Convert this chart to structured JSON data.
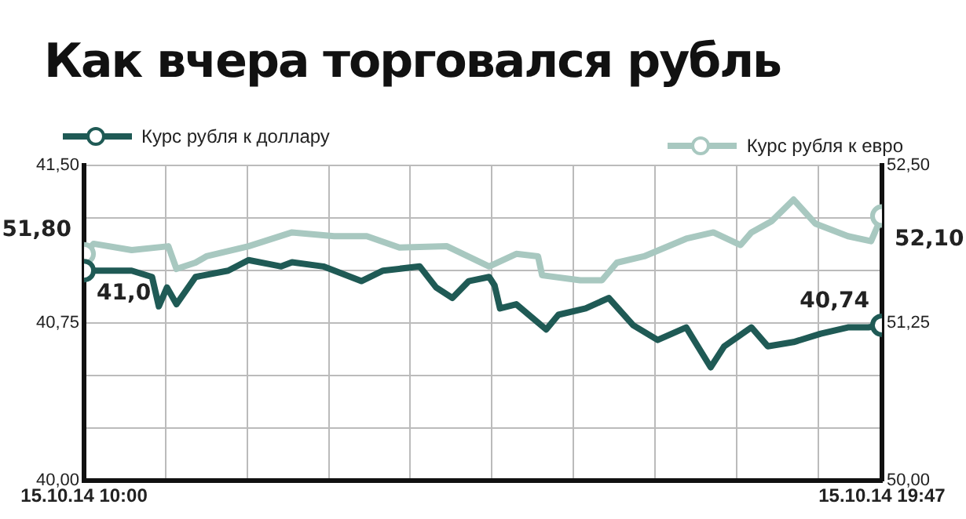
{
  "chart_data": {
    "type": "line",
    "title": "Как вчера торговался рубль",
    "xlim": [
      "--10-15T10:00",
      "--10-15T19:47"
    ],
    "xticks": [
      {
        "value": "--10-15T10:00",
        "label": "15.10.14 10:00"
      },
      {
        "value": "--10-15T11:00",
        "label": null
      },
      {
        "value": "--10-15T12:00",
        "label": null
      },
      {
        "value": "--10-15T13:00",
        "label": null
      },
      {
        "value": "--10-15T14:00",
        "label": null
      },
      {
        "value": "--10-15T15:00",
        "label": null
      },
      {
        "value": "--10-15T16:00",
        "label": null
      },
      {
        "value": "--10-15T17:00",
        "label": null
      },
      {
        "value": "--10-15T18:00",
        "label": null
      },
      {
        "value": "--10-15T19:00",
        "label": null
      },
      {
        "value": "--10-15T19:47",
        "label": "15.10.14 19:47"
      }
    ],
    "ylim": [
      40,
      41.5
    ],
    "yticks": [
      {
        "value": 40,
        "label": "40,00"
      },
      {
        "value": 40.25,
        "label": null
      },
      {
        "value": 40.5,
        "label": null
      },
      {
        "value": 40.75,
        "label": "40,75"
      },
      {
        "value": 41,
        "label": null
      },
      {
        "value": 41.25,
        "label": null
      },
      {
        "value": 41.5,
        "label": "41,50"
      }
    ],
    "y2lim": [
      50,
      52.5
    ],
    "y2ticks": [
      {
        "value": 50,
        "label": "50,00"
      },
      {
        "value": 51.25,
        "label": "51,25"
      },
      {
        "value": 52.5,
        "label": "52,50"
      }
    ],
    "grid": true,
    "legend": "top",
    "line_style": "solid",
    "series": [
      {
        "name": "Курс рубля к доллару",
        "color": "#1f5a55",
        "axis": "y",
        "x": [
          "--10-15T10:00",
          "--10-15T10:05",
          "--10-15T10:35",
          "--10-15T10:50",
          "--10-15T10:55",
          "--10-15T11:01",
          "--10-15T11:08",
          "--10-15T11:22",
          "--10-15T11:46",
          "--10-15T12:01",
          "--10-15T12:17",
          "--10-15T12:25",
          "--10-15T12:33",
          "--10-15T12:56",
          "--10-15T13:24",
          "--10-15T13:40",
          "--10-15T14:07",
          "--10-15T14:19",
          "--10-15T14:31",
          "--10-15T14:43",
          "--10-15T14:58",
          "--10-15T15:02",
          "--10-15T15:06",
          "--10-15T15:18",
          "--10-15T15:40",
          "--10-15T15:49",
          "--10-15T16:09",
          "--10-15T16:26",
          "--10-15T16:44",
          "--10-15T17:02",
          "--10-15T17:23",
          "--10-15T17:41",
          "--10-15T17:51",
          "--10-15T18:11",
          "--10-15T18:23",
          "--10-15T18:42",
          "--10-15T19:02",
          "--10-15T19:22",
          "--10-15T19:37",
          "--10-15T19:47"
        ],
        "values": [
          41.0,
          41.0,
          41.0,
          40.97,
          40.83,
          40.92,
          40.84,
          40.97,
          41.0,
          41.05,
          41.03,
          41.02,
          41.04,
          41.02,
          40.95,
          41.0,
          41.02,
          40.92,
          40.87,
          40.95,
          40.97,
          40.93,
          40.82,
          40.84,
          40.72,
          40.79,
          40.82,
          40.87,
          40.74,
          40.67,
          40.73,
          40.54,
          40.64,
          40.73,
          40.64,
          40.66,
          40.7,
          40.73,
          40.73,
          40.74
        ],
        "value_labels": [
          "41,0",
          null,
          null,
          null,
          null,
          null,
          null,
          null,
          null,
          null,
          null,
          null,
          null,
          null,
          null,
          null,
          null,
          null,
          null,
          null,
          null,
          null,
          null,
          null,
          null,
          null,
          null,
          null,
          null,
          null,
          null,
          null,
          null,
          null,
          null,
          null,
          null,
          null,
          null,
          "40,74"
        ]
      },
      {
        "name": "Курс рубля к евро",
        "color": "#a8c8c0",
        "axis": "y2",
        "x": [
          "--10-15T10:00",
          "--10-15T10:07",
          "--10-15T10:35",
          "--10-15T11:02",
          "--10-15T11:08",
          "--10-15T11:22",
          "--10-15T11:30",
          "--10-15T12:01",
          "--10-15T12:33",
          "--10-15T13:04",
          "--10-15T13:28",
          "--10-15T13:52",
          "--10-15T14:27",
          "--10-15T14:58",
          "--10-15T15:18",
          "--10-15T15:34",
          "--10-15T15:37",
          "--10-15T16:05",
          "--10-15T16:21",
          "--10-15T16:32",
          "--10-15T16:52",
          "--10-15T17:23",
          "--10-15T17:43",
          "--10-15T18:03",
          "--10-15T18:11",
          "--10-15T18:26",
          "--10-15T18:42",
          "--10-15T18:58",
          "--10-15T19:22",
          "--10-15T19:39",
          "--10-15T19:47"
        ],
        "values": [
          51.8,
          51.88,
          51.83,
          51.86,
          51.68,
          51.73,
          51.78,
          51.86,
          51.97,
          51.94,
          51.94,
          51.85,
          51.86,
          51.7,
          51.8,
          51.78,
          51.63,
          51.59,
          51.59,
          51.73,
          51.78,
          51.92,
          51.97,
          51.87,
          51.97,
          52.06,
          52.23,
          52.04,
          51.94,
          51.9,
          52.1
        ],
        "value_labels": [
          "51,80",
          null,
          null,
          null,
          null,
          null,
          null,
          null,
          null,
          null,
          null,
          null,
          null,
          null,
          null,
          null,
          null,
          null,
          null,
          null,
          null,
          null,
          null,
          null,
          null,
          null,
          null,
          null,
          null,
          null,
          "52,10"
        ]
      }
    ]
  }
}
